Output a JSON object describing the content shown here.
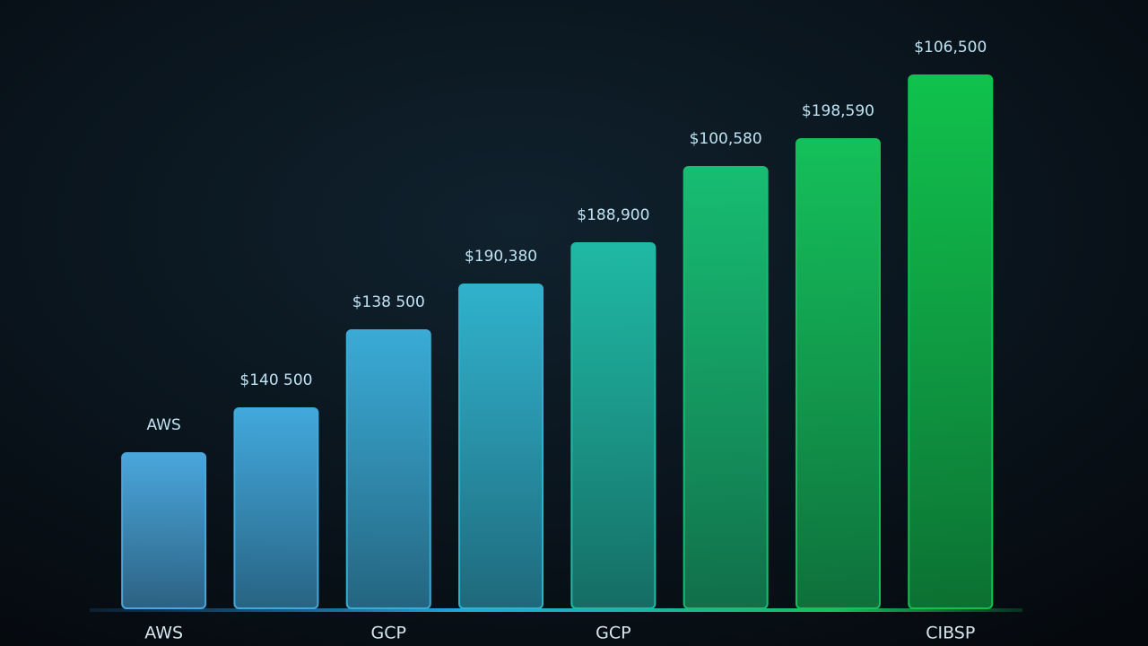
{
  "chart_data": {
    "type": "bar",
    "categories": [
      "AWS",
      null,
      "GCP",
      null,
      "GCP",
      null,
      null,
      "CIBSP"
    ],
    "bar_labels": [
      "AWS",
      "$140 500",
      "$138 500",
      "$190,380",
      "$188,900",
      "$100,580",
      "$198,590",
      "$106,500"
    ],
    "values": [
      173,
      223,
      310,
      361,
      407,
      492,
      523,
      594
    ],
    "colors": [
      "#4aa6dc",
      "#42a8dc",
      "#3aabd6",
      "#30b2cc",
      "#1fb9a4",
      "#17bd72",
      "#14c05a",
      "#10c24c"
    ],
    "ylim": [
      0,
      620
    ]
  }
}
